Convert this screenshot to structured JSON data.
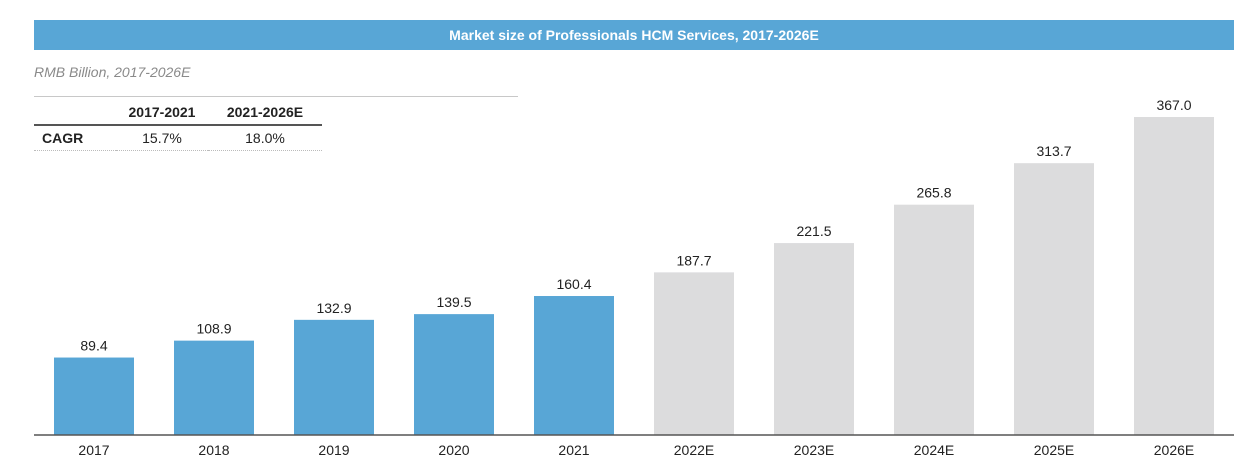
{
  "header": {
    "title": "Market size of Professionals HCM Services, 2017-2026E",
    "subtitle": "RMB Billion, 2017-2026E"
  },
  "cagr_table": {
    "headers": [
      "",
      "2017-2021",
      "2021-2026E"
    ],
    "row_label": "CAGR",
    "values": [
      "15.7%",
      "18.0%"
    ]
  },
  "colors": {
    "actual": "#58a6d6",
    "forecast": "#dcdcdd",
    "title_bar": "#58a6d6"
  },
  "chart_data": {
    "type": "bar",
    "title": "Market size of Professionals HCM Services, 2017-2026E",
    "subtitle": "RMB Billion, 2017-2026E",
    "categories": [
      "2017",
      "2018",
      "2019",
      "2020",
      "2021",
      "2022E",
      "2023E",
      "2024E",
      "2025E",
      "2026E"
    ],
    "values": [
      89.4,
      108.9,
      132.9,
      139.5,
      160.4,
      187.7,
      221.5,
      265.8,
      313.7,
      367.0
    ],
    "value_labels": [
      "89.4",
      "108.9",
      "132.9",
      "139.5",
      "160.4",
      "187.7",
      "221.5",
      "265.8",
      "313.7",
      "367.0"
    ],
    "forecast": [
      false,
      false,
      false,
      false,
      false,
      true,
      true,
      true,
      true,
      true
    ],
    "ylim": [
      0,
      367.0
    ],
    "grid": false,
    "legend": "none"
  }
}
